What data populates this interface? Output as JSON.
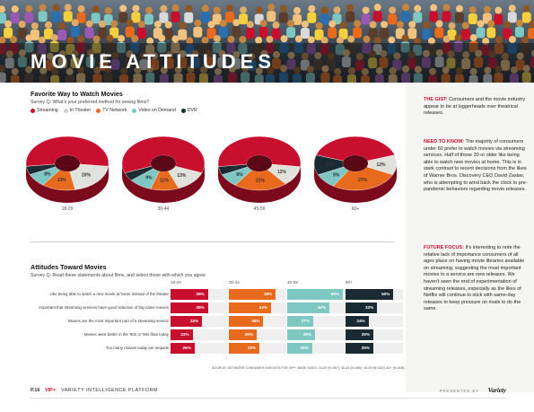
{
  "page": {
    "title": "MOVIE ATTITUDES",
    "number": "P.16",
    "brand": "VIP+",
    "platform": "VARIETY INTELLIGENCE PLATFORM",
    "presented_by": "PRESENTED BY",
    "sponsor": "Variety"
  },
  "colors": {
    "streaming": "#c8102e",
    "in_theater": "#e2e2dc",
    "tv_network": "#e86a1c",
    "video_on_demand": "#7ec7c2",
    "dvr": "#1a2a33",
    "accent": "#c8102e"
  },
  "chart_data": [
    {
      "type": "pie",
      "title": "Favorite Way to Watch Movies",
      "subtitle": "Survey Q: What's your preferred method for seeing films?",
      "legend": [
        "Streaming",
        "In Theater",
        "TV Network",
        "Video on Demand",
        "DVR"
      ],
      "legend_position": "top-left",
      "groups": [
        {
          "label": "18-29",
          "values": [
            53,
            20,
            13,
            8,
            5
          ]
        },
        {
          "label": "30-44",
          "values": [
            61,
            13,
            11,
            9,
            5
          ]
        },
        {
          "label": "45-59",
          "values": [
            54,
            12,
            21,
            8,
            5
          ]
        },
        {
          "label": "60+",
          "values": [
            40,
            12,
            27,
            9,
            12
          ]
        }
      ]
    },
    {
      "type": "bar",
      "title": "Attitudes Toward Movies",
      "subtitle": "Survey Q: Read these statements about films, and select those with which you agree",
      "groups": [
        "18-29",
        "30-44",
        "45-59",
        "60+"
      ],
      "categories": [
        "Like being able to watch a new movie at home instead of the theater",
        "Important that streaming services have good selection of big-name movies",
        "Movies are the most important part of a streaming service",
        "Movies were better in the '80s or '90s than today",
        "Too many movies today are sequels"
      ],
      "series": [
        {
          "name": "18-29",
          "values": [
            39,
            39,
            33,
            23,
            25
          ]
        },
        {
          "name": "30-44",
          "values": [
            49,
            44,
            36,
            29,
            32
          ]
        },
        {
          "name": "45-59",
          "values": [
            58,
            44,
            27,
            29,
            26
          ]
        },
        {
          "name": "60+",
          "values": [
            50,
            33,
            24,
            29,
            29
          ]
        }
      ],
      "xlim": [
        0,
        60
      ],
      "source": "SOURCE: GETWIZER CONSUMER INSIGHTS FOR VIP+; BASE SIZES: 18-29 (N=367); 30-44 (N=460); 45-59 (N=361); 60+ (N=408)"
    }
  ],
  "sidebar": {
    "gist_lead": "THE GIST:",
    "gist": "Consumers and the movie industry appear to be at loggerheads over theatrical releases.",
    "need_lead": "NEED TO KNOW:",
    "need": "The majority of consumers under 60 prefer to watch movies via streaming services. Half of those 30 or older like being able to watch new movies at home. This is in stark contrast to recent decisions from the likes of Warner Bros. Discovery CEO David Zaslav, who is attempting to wind back the clock to pre-pandemic behaviors regarding movie releases.",
    "future_lead": "FUTURE FOCUS:",
    "future": "It's interesting to note the relative lack of importance consumers of all ages place on having movie libraries available on streaming, suggesting the most important movies to a service are new releases. We haven't seen the end of experimentation of streaming releases, especially as the likes of Netflix will continue to stick with same-day releases to keep pressure on rivals to do the same."
  }
}
